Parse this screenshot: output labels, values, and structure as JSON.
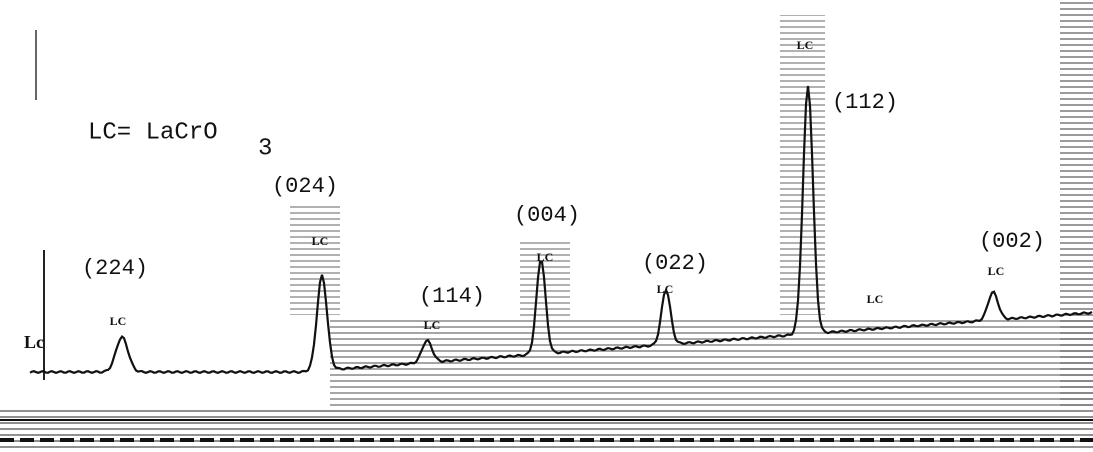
{
  "legend": {
    "text": "LC= LaCrO",
    "subscript": "3"
  },
  "peaks": [
    {
      "label": "(224)"
    },
    {
      "label": "(024)"
    },
    {
      "label": "(114)"
    },
    {
      "label": "(004)"
    },
    {
      "label": "(022)"
    },
    {
      "label": "(112)"
    },
    {
      "label": "(002)"
    }
  ],
  "lc_marks": [
    "Lc",
    "LC",
    "LC",
    "LC",
    "LC",
    "LC",
    "LC",
    "LC",
    "LC"
  ]
}
